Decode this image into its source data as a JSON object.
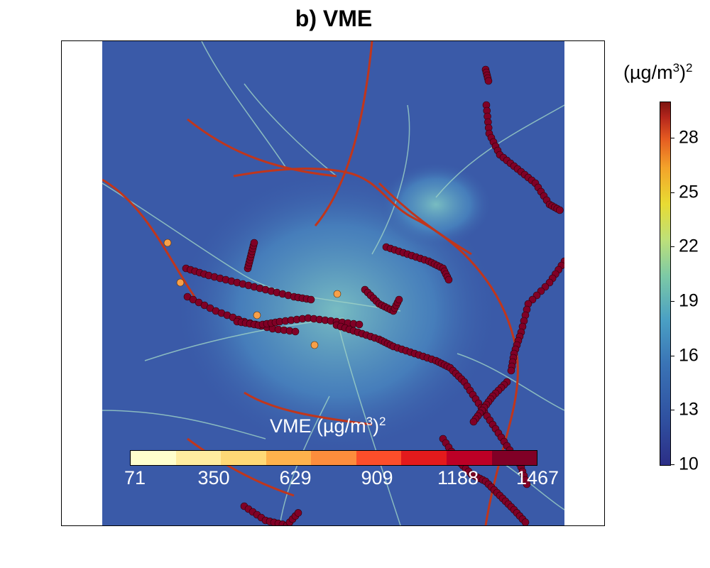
{
  "title": "b) VME",
  "colorbar": {
    "unit_main": "(µg/m",
    "unit_sup": "3",
    "unit_close": ")",
    "unit_sup2": "2",
    "ticks": [
      "28",
      "25",
      "22",
      "19",
      "16",
      "13",
      "10"
    ],
    "range": [
      10,
      30
    ]
  },
  "inset_legend": {
    "label_main": "VME (µg/m",
    "label_sup": "3",
    "label_close": ")",
    "label_sup2": "2",
    "ticks": [
      "71",
      "350",
      "629",
      "909",
      "1188",
      "1467"
    ],
    "colors": [
      "#ffffcc",
      "#ffeda0",
      "#fed976",
      "#feb24c",
      "#fd8d3c",
      "#fc4e2a",
      "#e31a1c",
      "#bd0026",
      "#800026"
    ]
  },
  "colors": {
    "background": "#3a5aa8",
    "road": "#d2e6a8",
    "major_road": "#c0361c",
    "marker": "#800026",
    "marker_light": "#f7a049"
  }
}
